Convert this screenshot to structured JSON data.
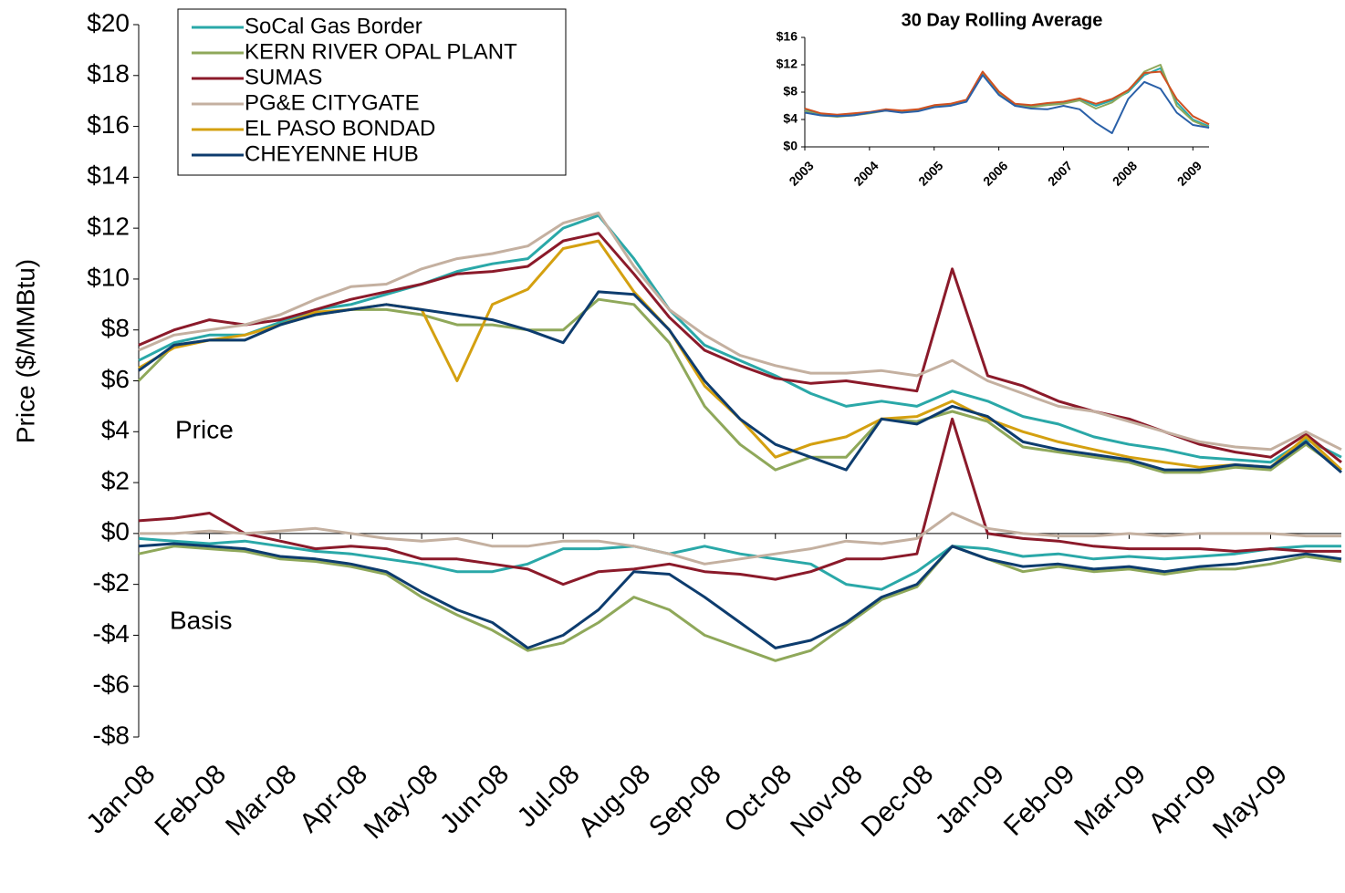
{
  "chart_data": [
    {
      "type": "line",
      "ylabel": "Price ($/MMBtu)",
      "annotations": [
        "Price",
        "Basis"
      ],
      "categories": [
        "Jan-08",
        null,
        "Feb-08",
        null,
        "Mar-08",
        null,
        "Apr-08",
        null,
        "May-08",
        null,
        "Jun-08",
        null,
        "Jul-08",
        null,
        "Aug-08",
        null,
        "Sep-08",
        null,
        "Oct-08",
        null,
        "Nov-08",
        null,
        "Dec-08",
        null,
        "Jan-09",
        null,
        "Feb-09",
        null,
        "Mar-09",
        null,
        "Apr-09",
        null,
        "May-09",
        null,
        null
      ],
      "ylim": [
        -8,
        20
      ],
      "yticks": [
        {
          "value": 20,
          "label": "$20"
        },
        {
          "value": 18,
          "label": "$18"
        },
        {
          "value": 16,
          "label": "$16"
        },
        {
          "value": 14,
          "label": "$14"
        },
        {
          "value": 12,
          "label": "$12"
        },
        {
          "value": 10,
          "label": "$10"
        },
        {
          "value": 8,
          "label": "$8"
        },
        {
          "value": 6,
          "label": "$6"
        },
        {
          "value": 4,
          "label": "$4"
        },
        {
          "value": 2,
          "label": "$2"
        },
        {
          "value": 0,
          "label": "$0"
        },
        {
          "value": -2,
          "label": "-$2"
        },
        {
          "value": -4,
          "label": "-$4"
        },
        {
          "value": -6,
          "label": "-$6"
        },
        {
          "value": -8,
          "label": "-$8"
        }
      ],
      "legend": "top-left",
      "series": [
        {
          "name": "SoCal Gas Border",
          "color": "#2aa8a8",
          "values": [
            6.8,
            7.5,
            7.8,
            7.8,
            8.3,
            8.8,
            9.0,
            9.4,
            9.8,
            10.3,
            10.6,
            10.8,
            12.0,
            12.5,
            10.8,
            8.8,
            7.4,
            6.8,
            6.2,
            5.5,
            5.0,
            5.2,
            5.0,
            5.6,
            5.2,
            4.6,
            4.3,
            3.8,
            3.5,
            3.3,
            3.0,
            2.9,
            2.8,
            3.7,
            3.0
          ],
          "basis": [
            -0.2,
            -0.3,
            -0.4,
            -0.3,
            -0.5,
            -0.7,
            -0.8,
            -1.0,
            -1.2,
            -1.5,
            -1.5,
            -1.2,
            -0.6,
            -0.6,
            -0.5,
            -0.8,
            -0.5,
            -0.8,
            -1.0,
            -1.2,
            -2.0,
            -2.2,
            -1.5,
            -0.5,
            -0.6,
            -0.9,
            -0.8,
            -1.0,
            -0.9,
            -1.0,
            -0.9,
            -0.8,
            -0.6,
            -0.5,
            -0.5
          ]
        },
        {
          "name": "KERN RIVER OPAL PLANT",
          "color": "#8fa85a",
          "values": [
            6.0,
            7.4,
            7.6,
            7.6,
            8.2,
            8.6,
            8.8,
            8.8,
            8.6,
            8.2,
            8.2,
            8.0,
            8.0,
            9.2,
            9.0,
            7.5,
            5.0,
            3.5,
            2.5,
            3.0,
            3.0,
            4.5,
            4.4,
            4.8,
            4.4,
            3.4,
            3.2,
            3.0,
            2.8,
            2.4,
            2.4,
            2.6,
            2.5,
            3.5,
            2.5
          ],
          "basis": [
            -0.8,
            -0.5,
            -0.6,
            -0.7,
            -1.0,
            -1.1,
            -1.3,
            -1.6,
            -2.5,
            -3.2,
            -3.8,
            -4.6,
            -4.3,
            -3.5,
            -2.5,
            -3.0,
            -4.0,
            -4.5,
            -5.0,
            -4.6,
            -3.6,
            -2.6,
            -2.1,
            -0.5,
            -1.0,
            -1.5,
            -1.3,
            -1.5,
            -1.4,
            -1.6,
            -1.4,
            -1.4,
            -1.2,
            -0.9,
            -1.1
          ]
        },
        {
          "name": "SUMAS",
          "color": "#8b1a2a",
          "values": [
            7.4,
            8.0,
            8.4,
            8.2,
            8.4,
            8.8,
            9.2,
            9.5,
            9.8,
            10.2,
            10.3,
            10.5,
            11.5,
            11.8,
            10.2,
            8.5,
            7.2,
            6.6,
            6.1,
            5.9,
            6.0,
            5.8,
            5.6,
            10.4,
            6.2,
            5.8,
            5.2,
            4.8,
            4.5,
            4.0,
            3.5,
            3.2,
            3.0,
            3.9,
            2.8
          ],
          "basis": [
            0.5,
            0.6,
            0.8,
            0,
            -0.3,
            -0.6,
            -0.5,
            -0.6,
            -1.0,
            -1.0,
            -1.2,
            -1.4,
            -2.0,
            -1.5,
            -1.4,
            -1.2,
            -1.5,
            -1.6,
            -1.8,
            -1.5,
            -1.0,
            -1.0,
            -0.8,
            4.5,
            0,
            -0.2,
            -0.3,
            -0.5,
            -0.6,
            -0.6,
            -0.6,
            -0.7,
            -0.6,
            -0.7,
            -0.7
          ]
        },
        {
          "name": "PG&E CITYGATE",
          "color": "#c4b0a0",
          "values": [
            7.2,
            7.8,
            8.0,
            8.2,
            8.6,
            9.2,
            9.7,
            9.8,
            10.4,
            10.8,
            11.0,
            11.3,
            12.2,
            12.6,
            10.5,
            8.8,
            7.8,
            7.0,
            6.6,
            6.3,
            6.3,
            6.4,
            6.2,
            6.8,
            6.0,
            5.5,
            5.0,
            4.8,
            4.4,
            4.0,
            3.6,
            3.4,
            3.3,
            4.0,
            3.3
          ],
          "basis": [
            0,
            0,
            0.1,
            0,
            0.1,
            0.2,
            0,
            -0.2,
            -0.3,
            -0.2,
            -0.5,
            -0.5,
            -0.3,
            -0.3,
            -0.5,
            -0.8,
            -1.2,
            -1.0,
            -0.8,
            -0.6,
            -0.3,
            -0.4,
            -0.2,
            0.8,
            0.2,
            0,
            -0.1,
            -0.1,
            0,
            -0.1,
            0,
            0,
            0,
            -0.1,
            -0.1
          ]
        },
        {
          "name": "EL PASO BONDAD",
          "color": "#d4a010",
          "values": [
            6.5,
            7.3,
            7.6,
            7.8,
            8.2,
            8.7,
            8.8,
            9.0,
            8.8,
            6.0,
            9.0,
            9.6,
            11.2,
            11.5,
            9.5,
            8.0,
            5.8,
            4.5,
            3.0,
            3.5,
            3.8,
            4.5,
            4.6,
            5.2,
            4.5,
            4.0,
            3.6,
            3.3,
            3.0,
            2.8,
            2.6,
            2.7,
            2.6,
            3.8,
            2.5
          ]
        },
        {
          "name": "CHEYENNE HUB",
          "color": "#0d3c6e",
          "values": [
            6.4,
            7.4,
            7.6,
            7.6,
            8.2,
            8.6,
            8.8,
            9.0,
            8.8,
            8.6,
            8.4,
            8.0,
            7.5,
            9.5,
            9.4,
            8.0,
            6.0,
            4.5,
            3.5,
            3.0,
            2.5,
            4.5,
            4.3,
            5.0,
            4.6,
            3.6,
            3.3,
            3.1,
            2.9,
            2.5,
            2.5,
            2.7,
            2.6,
            3.6,
            2.4
          ],
          "basis": [
            -0.5,
            -0.4,
            -0.5,
            -0.6,
            -0.9,
            -1.0,
            -1.2,
            -1.5,
            -2.3,
            -3.0,
            -3.5,
            -4.5,
            -4.0,
            -3.0,
            -1.5,
            -1.6,
            -2.5,
            -3.5,
            -4.5,
            -4.2,
            -3.5,
            -2.5,
            -2.0,
            -0.5,
            -1.0,
            -1.3,
            -1.2,
            -1.4,
            -1.3,
            -1.5,
            -1.3,
            -1.2,
            -1.0,
            -0.8,
            -1.0
          ]
        }
      ]
    },
    {
      "type": "line",
      "title": "30 Day Rolling Average",
      "categories": [
        "2003",
        null,
        null,
        null,
        "2004",
        null,
        null,
        null,
        "2005",
        null,
        null,
        null,
        "2006",
        null,
        null,
        null,
        "2007",
        null,
        null,
        null,
        "2008",
        null,
        null,
        null,
        "2009",
        null
      ],
      "ylim": [
        0,
        16
      ],
      "yticks": [
        {
          "value": 0,
          "label": "$0"
        },
        {
          "value": 4,
          "label": "$4"
        },
        {
          "value": 8,
          "label": "$8"
        },
        {
          "value": 12,
          "label": "$12"
        },
        {
          "value": 16,
          "label": "$16"
        }
      ],
      "series": [
        {
          "color": "#2aa8a8",
          "values": [
            5.5,
            4.8,
            4.6,
            4.8,
            5.0,
            5.4,
            5.2,
            5.4,
            6.0,
            6.2,
            6.8,
            10.8,
            8.0,
            6.2,
            6.0,
            6.3,
            6.5,
            7.0,
            6.0,
            6.8,
            8.0,
            10.5,
            11.5,
            6.5,
            4.0,
            3.0
          ]
        },
        {
          "color": "#8fa85a",
          "values": [
            5.2,
            4.6,
            4.4,
            4.6,
            4.9,
            5.3,
            5.1,
            5.3,
            5.9,
            6.1,
            6.7,
            10.6,
            7.8,
            6.0,
            5.8,
            6.1,
            6.3,
            6.8,
            5.6,
            6.5,
            8.2,
            11.0,
            12.0,
            6.0,
            3.8,
            2.8
          ]
        },
        {
          "color": "#d05020",
          "values": [
            5.6,
            4.9,
            4.7,
            4.9,
            5.1,
            5.5,
            5.3,
            5.5,
            6.1,
            6.3,
            6.9,
            11.0,
            8.1,
            6.3,
            6.1,
            6.4,
            6.6,
            7.1,
            6.3,
            7.0,
            8.3,
            10.8,
            11.0,
            7.0,
            4.5,
            3.3
          ]
        },
        {
          "color": "#2a60a8",
          "values": [
            5.0,
            4.6,
            4.5,
            4.6,
            5.0,
            5.3,
            5.0,
            5.2,
            5.8,
            6.0,
            6.6,
            10.5,
            7.6,
            6.0,
            5.6,
            5.5,
            6.0,
            5.5,
            3.5,
            2.0,
            7.0,
            9.5,
            8.5,
            5.0,
            3.2,
            2.8
          ]
        }
      ]
    }
  ]
}
